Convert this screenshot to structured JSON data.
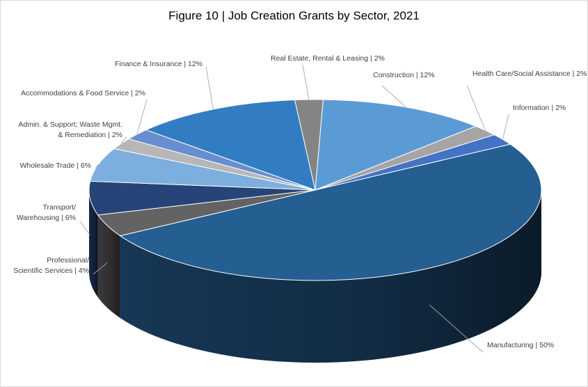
{
  "chart_data": {
    "type": "pie",
    "title": "Figure 10 | Job Creation Grants by Sector, 2021",
    "three_d": true,
    "slices": [
      {
        "label": "Construction | 12%",
        "value": 12,
        "color": "#5b9bd5"
      },
      {
        "label": "Health Care/Social Assistance | 2%",
        "value": 2,
        "color": "#a5a5a5"
      },
      {
        "label": "Information | 2%",
        "value": 2,
        "color": "#4472c4"
      },
      {
        "label": "Manufacturing | 50%",
        "value": 50,
        "color": "#255e91"
      },
      {
        "label": "Professional/ Scientific Services | 4%",
        "value": 4,
        "color": "#636363"
      },
      {
        "label": "Transport/ Warehousing | 6%",
        "value": 6,
        "color": "#264478"
      },
      {
        "label": "Wholesale Trade | 6%",
        "value": 6,
        "color": "#7cafdd"
      },
      {
        "label": "Admin. & Support; Waste Mgmt. & Remediation | 2%",
        "value": 2,
        "color": "#b7b7b7"
      },
      {
        "label": "Accommodations & Food Service | 2%",
        "value": 2,
        "color": "#698ed0"
      },
      {
        "label": "Finance & Insurance | 12%",
        "value": 12,
        "color": "#327dc2"
      },
      {
        "label": "Real Estate, Rental & Leasing | 2%",
        "value": 2,
        "color": "#848484"
      }
    ]
  }
}
